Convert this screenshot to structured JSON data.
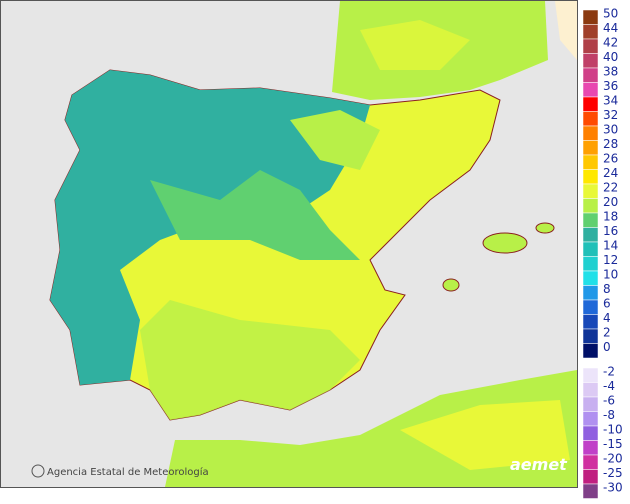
{
  "credit": "Agencia Estatal de Meteorología",
  "logo": "aemet",
  "legend": {
    "entries": [
      {
        "label": "50",
        "color": "#8b3a10"
      },
      {
        "label": "44",
        "color": "#a0402a"
      },
      {
        "label": "42",
        "color": "#b04048"
      },
      {
        "label": "40",
        "color": "#c04068"
      },
      {
        "label": "38",
        "color": "#d04088"
      },
      {
        "label": "36",
        "color": "#e848b0"
      },
      {
        "label": "34",
        "color": "#ff0000"
      },
      {
        "label": "32",
        "color": "#ff4a00"
      },
      {
        "label": "30",
        "color": "#ff8000"
      },
      {
        "label": "28",
        "color": "#ffa000"
      },
      {
        "label": "26",
        "color": "#ffc800"
      },
      {
        "label": "24",
        "color": "#ffe800"
      },
      {
        "label": "22",
        "color": "#e8f838"
      },
      {
        "label": "20",
        "color": "#b8f048"
      },
      {
        "label": "18",
        "color": "#60d070"
      },
      {
        "label": "16",
        "color": "#30b0a0"
      },
      {
        "label": "14",
        "color": "#20c0b8"
      },
      {
        "label": "12",
        "color": "#20d0d0"
      },
      {
        "label": "10",
        "color": "#20e0e8"
      },
      {
        "label": "8",
        "color": "#2098e8"
      },
      {
        "label": "6",
        "color": "#2068d8"
      },
      {
        "label": "4",
        "color": "#1848b8"
      },
      {
        "label": "2",
        "color": "#103498"
      },
      {
        "label": "0",
        "color": "#001068"
      },
      {
        "label": "-2",
        "color": "#ece4fa"
      },
      {
        "label": "-4",
        "color": "#dccaf4"
      },
      {
        "label": "-6",
        "color": "#c8b0f0"
      },
      {
        "label": "-8",
        "color": "#b090f0"
      },
      {
        "label": "-10",
        "color": "#9060e0"
      },
      {
        "label": "-15",
        "color": "#c040c8"
      },
      {
        "label": "-20",
        "color": "#d030a0"
      },
      {
        "label": "-25",
        "color": "#c02080"
      },
      {
        "label": "-30",
        "color": "#804088"
      }
    ]
  }
}
